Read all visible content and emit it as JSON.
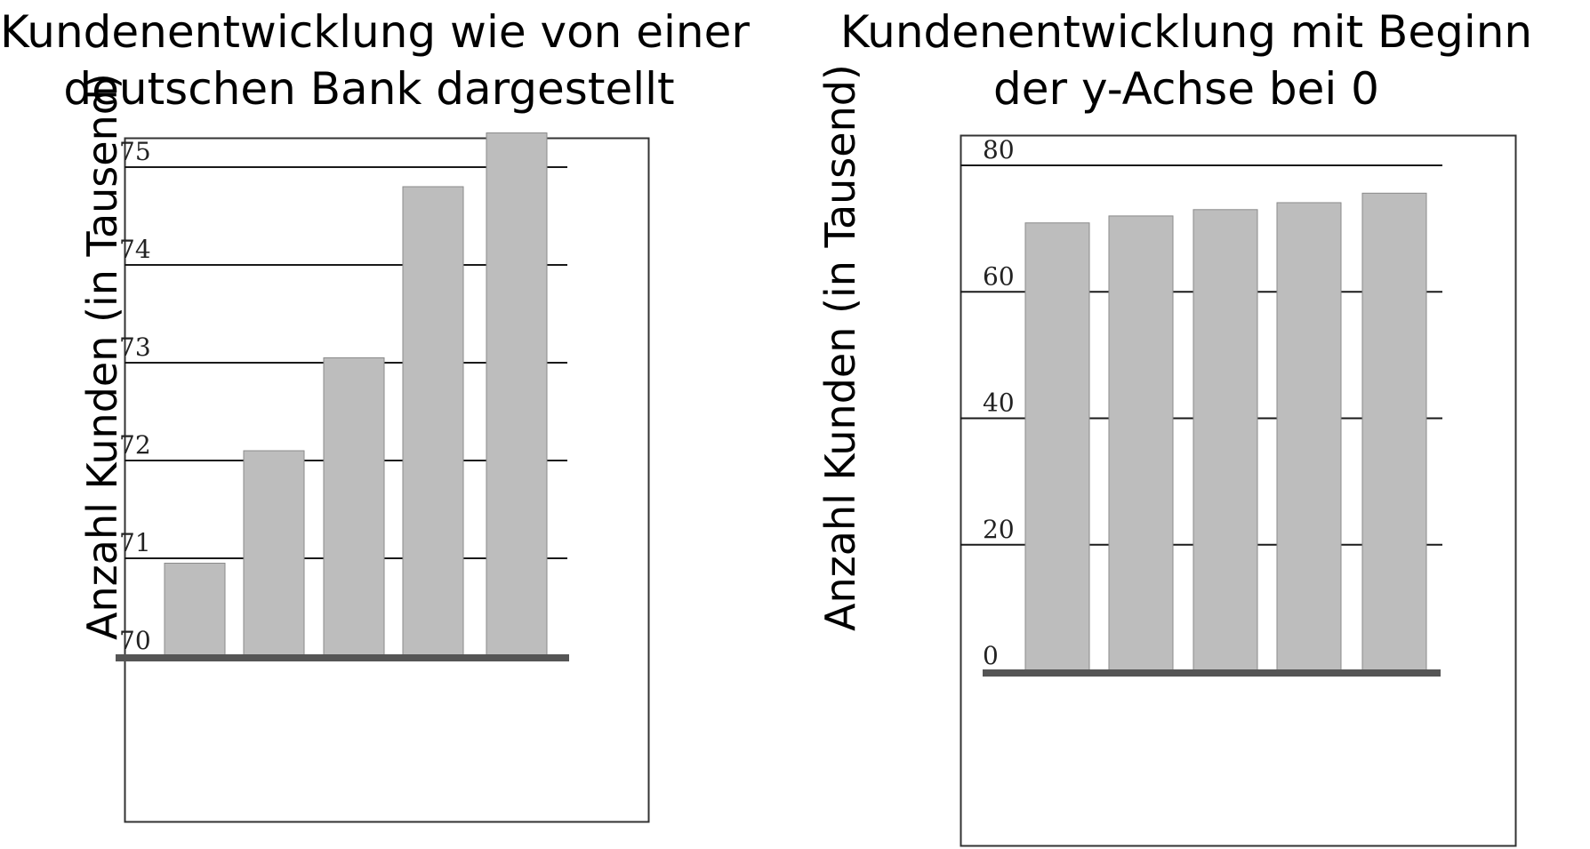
{
  "chart_data": [
    {
      "type": "bar",
      "title_lines": [
        "Kundenentwicklung wie von einer",
        "deutschen Bank dargestellt"
      ],
      "ylabel": "Anzahl Kunden (in Tausend)",
      "xlabel": "",
      "categories": [
        "",
        "",
        "",
        "",
        ""
      ],
      "values": [
        70.95,
        72.1,
        73.05,
        74.8,
        75.35
      ],
      "ylim": [
        70,
        75
      ],
      "yticks": [
        "70",
        "71",
        "72",
        "73",
        "74",
        "75"
      ],
      "grid": true,
      "bar_color": "#bdbdbd",
      "axis_color": "#555555"
    },
    {
      "type": "bar",
      "title_lines": [
        "Kundenentwicklung mit Beginn",
        "der y-Achse bei 0"
      ],
      "ylabel": "Anzahl Kunden (in Tausend)",
      "xlabel": "",
      "categories": [
        "",
        "",
        "",
        "",
        ""
      ],
      "values": [
        70.9,
        72.0,
        73.0,
        74.1,
        75.6
      ],
      "ylim": [
        0,
        80
      ],
      "yticks": [
        "0",
        "20",
        "40",
        "60",
        "80"
      ],
      "grid": true,
      "bar_color": "#bdbdbd",
      "axis_color": "#555555"
    }
  ]
}
